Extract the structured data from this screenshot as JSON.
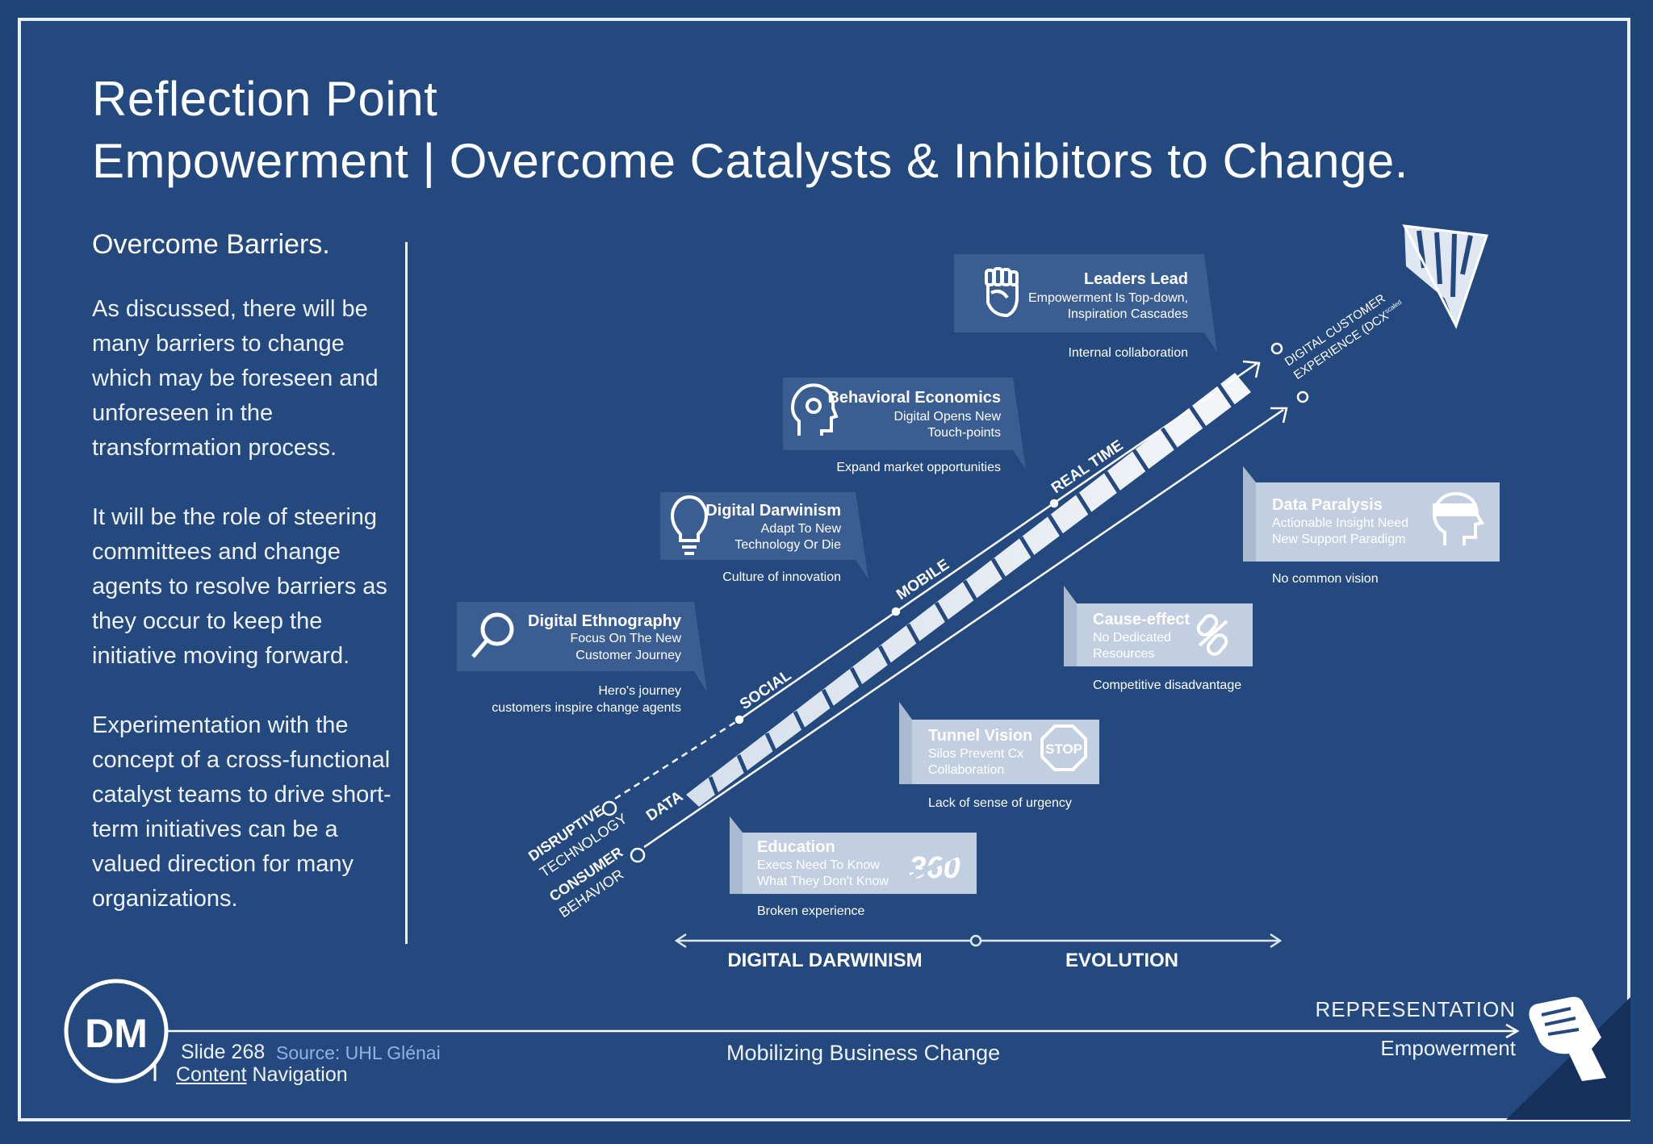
{
  "title": {
    "line1": "Reflection Point",
    "line2": "Empowerment | Overcome Catalysts & Inhibitors to Change."
  },
  "left": {
    "heading": "Overcome Barriers.",
    "paragraphs": [
      "As discussed, there will be many barriers to change which may be foreseen and unforeseen in the transformation process.",
      "It will be the role of steering committees and change agents to resolve barriers as they occur to keep the initiative moving forward.",
      "Experimentation with the concept of a cross-functional catalyst teams to drive short-term initiatives can be a valued direction for many organizations."
    ]
  },
  "diagram": {
    "catalysts": [
      {
        "title": "Leaders Lead",
        "line1": "Empowerment Is Top-down,",
        "line2": "Inspiration Cascades",
        "caption": "Internal collaboration",
        "icon": "fist-icon"
      },
      {
        "title": "Behavioral Economics",
        "line1": "Digital Opens New",
        "line2": "Touch-points",
        "caption": "Expand market opportunities",
        "icon": "head-gear-icon"
      },
      {
        "title": "Digital Darwinism",
        "line1": "Adapt To New",
        "line2": "Technology Or Die",
        "caption": "Culture of innovation",
        "icon": "lightbulb-icon"
      },
      {
        "title": "Digital Ethnography",
        "line1": "Focus On The New",
        "line2": "Customer Journey",
        "caption1": "Hero's journey",
        "caption2": "customers inspire change agents",
        "icon": "magnifier-icon"
      }
    ],
    "inhibitors": [
      {
        "title": "Data Paralysis",
        "line1": "Actionable Insight Need",
        "line2": "New Support Paradigm",
        "caption": "No common vision",
        "icon": "blindfold-head-icon"
      },
      {
        "title": "Cause-effect",
        "line1": "No Dedicated",
        "line2": "Resources",
        "caption": "Competitive disadvantage",
        "icon": "broken-link-icon"
      },
      {
        "title": "Tunnel Vision",
        "line1": "Silos Prevent Cx",
        "line2": "Collaboration",
        "caption": "Lack of sense of urgency",
        "icon": "stop-sign-icon",
        "icon_text": "STOP"
      },
      {
        "title": "Education",
        "line1": "Execs Need To Know",
        "line2": "What They Don't Know",
        "caption": "Broken experience",
        "icon": "360-icon",
        "icon_text": "360"
      }
    ],
    "upper_track": {
      "start_line1": "DISRUPTIVE",
      "start_line2": "TECHNOLOGY",
      "stages": [
        "SOCIAL",
        "MOBILE",
        "REAL TIME"
      ]
    },
    "lower_track": {
      "start_line1": "CONSUMER",
      "start_line2": "BEHAVIOR",
      "stage": "DATA"
    },
    "end_label_line1": "DIGITAL CUSTOMER",
    "end_label_line2": "EXPERIENCE (DCX",
    "end_label_sup": "scaled",
    "timeline": [
      "DIGITAL DARWINISM",
      "EVOLUTION"
    ]
  },
  "footer": {
    "logo": "DM",
    "slide": "Slide 268",
    "source": "Source: UHL Glénai",
    "nav_a": "Content",
    "nav_b": " Navigation",
    "center": "Mobilizing Business Change",
    "right_top": "REPRESENTATION",
    "right_bottom": "Empowerment"
  },
  "colors": {
    "background": "#1f4478",
    "panel": "#2d5288",
    "light": "#dfe7f1",
    "muted": "#c9d5e6"
  }
}
